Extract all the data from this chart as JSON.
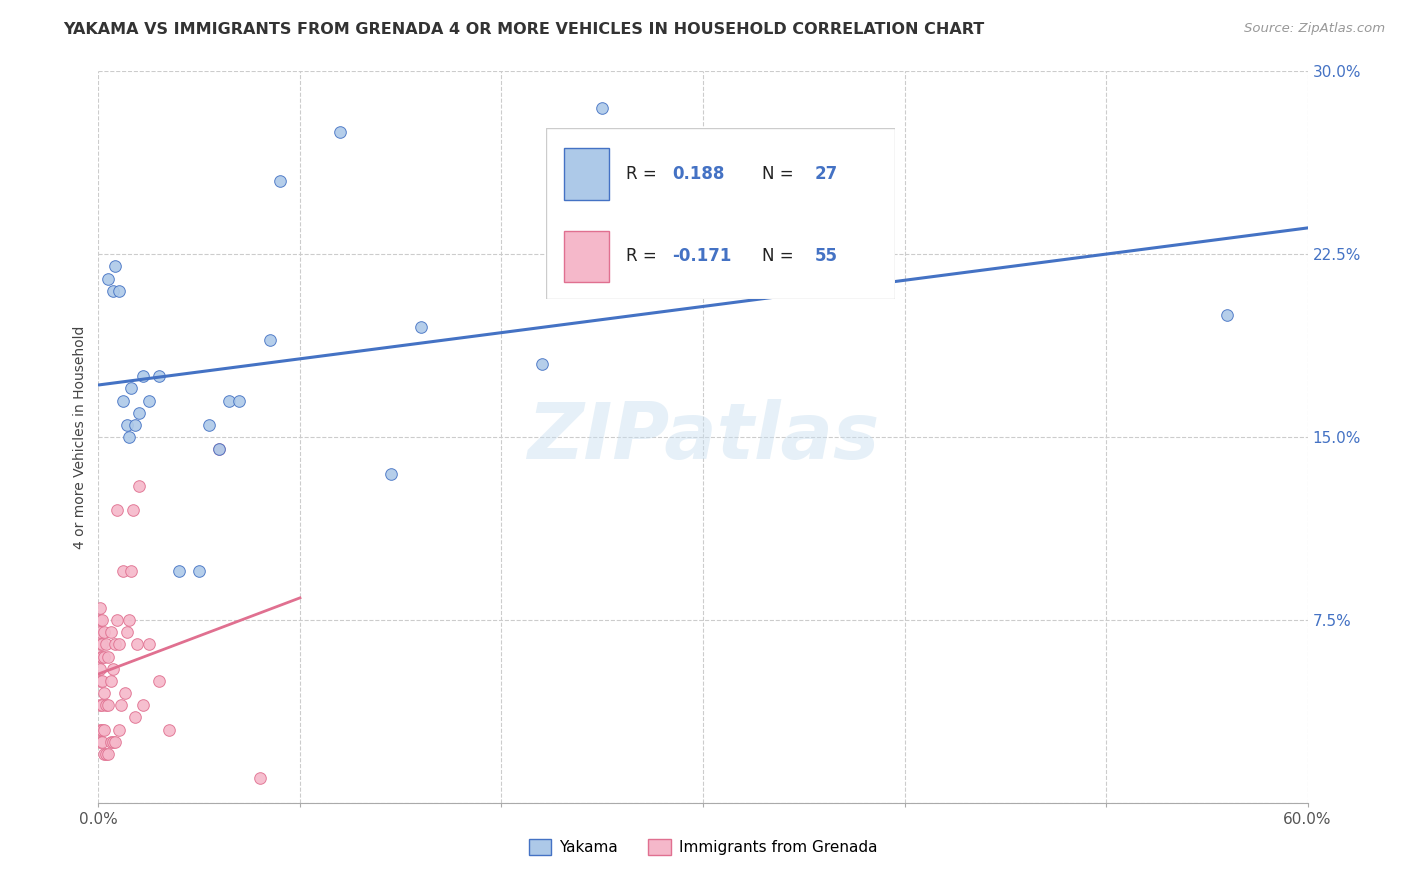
{
  "title": "YAKAMA VS IMMIGRANTS FROM GRENADA 4 OR MORE VEHICLES IN HOUSEHOLD CORRELATION CHART",
  "source_text": "Source: ZipAtlas.com",
  "ylabel": "4 or more Vehicles in Household",
  "xlim": [
    0.0,
    0.6
  ],
  "ylim": [
    0.0,
    0.3
  ],
  "xticks": [
    0.0,
    0.1,
    0.2,
    0.3,
    0.4,
    0.5,
    0.6
  ],
  "yticks": [
    0.0,
    0.075,
    0.15,
    0.225,
    0.3
  ],
  "xtick_labels_show": [
    "0.0%",
    "",
    "",
    "",
    "",
    "",
    "60.0%"
  ],
  "ytick_labels": [
    "",
    "7.5%",
    "15.0%",
    "22.5%",
    "30.0%"
  ],
  "legend_labels": [
    "Yakama",
    "Immigrants from Grenada"
  ],
  "yakama_color": "#adc9e8",
  "grenada_color": "#f5b8ca",
  "trendline_yakama_color": "#4472c4",
  "trendline_grenada_color": "#e07090",
  "watermark": "ZIPatlas",
  "legend_r_yakama": "R =  0.188",
  "legend_n_yakama": "N = 27",
  "legend_r_grenada": "R = -0.171",
  "legend_n_grenada": "N = 55",
  "yakama_x": [
    0.005,
    0.007,
    0.008,
    0.01,
    0.012,
    0.014,
    0.015,
    0.016,
    0.018,
    0.02,
    0.022,
    0.025,
    0.03,
    0.04,
    0.05,
    0.055,
    0.06,
    0.065,
    0.07,
    0.085,
    0.09,
    0.12,
    0.145,
    0.16,
    0.22,
    0.25,
    0.56
  ],
  "yakama_y": [
    0.215,
    0.21,
    0.22,
    0.21,
    0.165,
    0.155,
    0.15,
    0.17,
    0.155,
    0.16,
    0.175,
    0.165,
    0.175,
    0.095,
    0.095,
    0.155,
    0.145,
    0.165,
    0.165,
    0.19,
    0.255,
    0.275,
    0.135,
    0.195,
    0.18,
    0.285,
    0.2
  ],
  "grenada_x": [
    0.001,
    0.001,
    0.001,
    0.001,
    0.001,
    0.001,
    0.001,
    0.001,
    0.001,
    0.001,
    0.002,
    0.002,
    0.002,
    0.002,
    0.002,
    0.002,
    0.002,
    0.003,
    0.003,
    0.003,
    0.003,
    0.003,
    0.004,
    0.004,
    0.004,
    0.005,
    0.005,
    0.005,
    0.006,
    0.006,
    0.006,
    0.007,
    0.007,
    0.008,
    0.008,
    0.009,
    0.009,
    0.01,
    0.01,
    0.011,
    0.012,
    0.013,
    0.014,
    0.015,
    0.016,
    0.017,
    0.018,
    0.019,
    0.02,
    0.022,
    0.025,
    0.03,
    0.035,
    0.06,
    0.08
  ],
  "grenada_y": [
    0.025,
    0.03,
    0.04,
    0.05,
    0.055,
    0.06,
    0.065,
    0.07,
    0.075,
    0.08,
    0.025,
    0.03,
    0.04,
    0.05,
    0.06,
    0.065,
    0.075,
    0.02,
    0.03,
    0.045,
    0.06,
    0.07,
    0.02,
    0.04,
    0.065,
    0.02,
    0.04,
    0.06,
    0.025,
    0.05,
    0.07,
    0.025,
    0.055,
    0.025,
    0.065,
    0.075,
    0.12,
    0.03,
    0.065,
    0.04,
    0.095,
    0.045,
    0.07,
    0.075,
    0.095,
    0.12,
    0.035,
    0.065,
    0.13,
    0.04,
    0.065,
    0.05,
    0.03,
    0.145,
    0.01
  ],
  "figsize": [
    14.06,
    8.92
  ],
  "dpi": 100
}
